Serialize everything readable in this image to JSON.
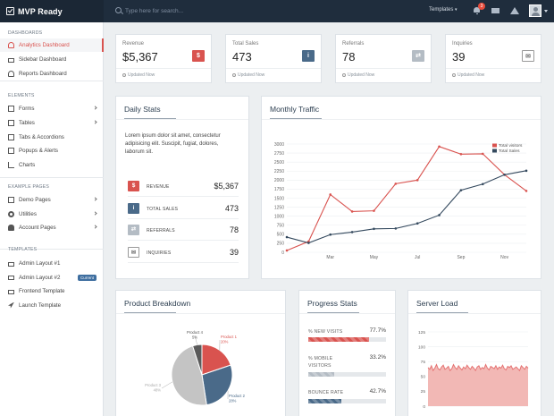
{
  "app": {
    "brand": "MVP Ready"
  },
  "topbar": {
    "search_placeholder": "Type here for search...",
    "templates_label": "Templates",
    "notif_count": "3",
    "icons": [
      "search-icon",
      "bell-icon",
      "mail-icon",
      "warning-icon"
    ]
  },
  "sidebar": {
    "dashboards_title": "DASHBOARDS",
    "dashboards": [
      {
        "label": "Analytics Dashboard",
        "icon": "dashboard-icon",
        "active": true
      },
      {
        "label": "Sidebar Dashboard",
        "icon": "laptop-icon"
      },
      {
        "label": "Reports Dashboard",
        "icon": "dashboard-icon"
      }
    ],
    "elements_title": "ELEMENTS",
    "elements": [
      {
        "label": "Forms",
        "icon": "pencil-icon"
      },
      {
        "label": "Tables",
        "icon": "table-icon"
      },
      {
        "label": "Tabs & Accordions",
        "icon": "tabs-icon"
      },
      {
        "label": "Popups & Alerts",
        "icon": "popup-icon"
      },
      {
        "label": "Charts",
        "icon": "chart-icon"
      }
    ],
    "examples_title": "EXAMPLE PAGES",
    "examples": [
      {
        "label": "Demo Pages",
        "icon": "folder-icon"
      },
      {
        "label": "Utilities",
        "icon": "cog-icon"
      },
      {
        "label": "Account Pages",
        "icon": "user-icon"
      }
    ],
    "templates_title": "TEMPLATES",
    "templates": [
      {
        "label": "Admin Layout #1",
        "icon": "laptop-icon"
      },
      {
        "label": "Admin Layout #2",
        "icon": "laptop-icon",
        "pill": "Current"
      },
      {
        "label": "Frontend Template",
        "icon": "desktop-icon"
      },
      {
        "label": "Launch Template",
        "icon": "rocket-icon"
      }
    ]
  },
  "stats": [
    {
      "label": "Revenue",
      "value": "$5,367",
      "icon": "dollar-icon",
      "color": "#d9534f",
      "glyph": "$",
      "foot": "Updated Now"
    },
    {
      "label": "Total Sales",
      "value": "473",
      "icon": "info-icon",
      "color": "#4a6a89",
      "glyph": "i",
      "foot": "Updated Now"
    },
    {
      "label": "Referrals",
      "value": "78",
      "icon": "exchange-icon",
      "color": "#b4bcc4",
      "glyph": "⇄",
      "foot": "Updated Now"
    },
    {
      "label": "Inquiries",
      "value": "39",
      "icon": "envelope-icon",
      "color": "#ffffff",
      "glyph": "✉",
      "foot": "Updated Now"
    }
  ],
  "daily": {
    "title": "Daily Stats",
    "text": "Lorem ipsum dolor sit amet, consectetur adipisicing elit. Suscipit, fugiat, dolores, laborum sit.",
    "rows": [
      {
        "label": "REVENUE",
        "value": "$5,367",
        "color": "#d9534f",
        "glyph": "$",
        "icon": "dollar-icon"
      },
      {
        "label": "TOTAL SALES",
        "value": "473",
        "color": "#4a6a89",
        "glyph": "i",
        "icon": "info-icon"
      },
      {
        "label": "REFERRALS",
        "value": "78",
        "color": "#b4bcc4",
        "glyph": "⇄",
        "icon": "exchange-icon"
      },
      {
        "label": "INQUIRIES",
        "value": "39",
        "color": "#ffffff",
        "glyph": "✉",
        "icon": "envelope-icon"
      }
    ]
  },
  "panels": {
    "traffic": "Monthly Traffic",
    "product": "Product Breakdown",
    "progress": "Progress Stats",
    "server": "Server Load"
  },
  "progress": [
    {
      "label": "% NEW VISITS",
      "pct": "77.7%",
      "value": 77.7,
      "color": "#d9534f"
    },
    {
      "label": "% MOBILE VISITORS",
      "pct": "33.2%",
      "value": 33.2,
      "color": "#b4bcc4"
    },
    {
      "label": "BOUNCE RATE",
      "pct": "42.7%",
      "value": 42.7,
      "color": "#4a6a89"
    }
  ],
  "chart_data": [
    {
      "type": "line",
      "x": [
        1,
        2,
        3,
        4,
        5,
        6,
        7,
        8,
        9,
        10,
        11,
        12
      ],
      "tick_labels": {
        "3": "Mar",
        "5": "May",
        "7": "Jul",
        "9": "Sep",
        "11": "Nov"
      },
      "ylim": [
        0,
        3000
      ],
      "yticks": [
        0,
        250,
        500,
        750,
        1000,
        1250,
        1500,
        1750,
        2000,
        2250,
        2500,
        2750,
        3000
      ],
      "series": [
        {
          "name": "Total visitors",
          "color": "#d9534f",
          "values": [
            50,
            300,
            1600,
            1130,
            1150,
            1900,
            2000,
            2930,
            2720,
            2730,
            2150,
            1700
          ]
        },
        {
          "name": "Total Sales",
          "color": "#34495e",
          "values": [
            420,
            260,
            490,
            560,
            650,
            660,
            800,
            1030,
            1720,
            1890,
            2150,
            2260
          ]
        }
      ],
      "legend": "top-right",
      "grid": true
    },
    {
      "type": "pie",
      "labels": [
        "Product 1",
        "Product 2",
        "Product 3",
        "Product 4"
      ],
      "values": [
        20,
        28,
        48,
        5
      ],
      "value_labels": [
        "20%",
        "28%",
        "48%",
        "5%"
      ],
      "colors": [
        "#d9534f",
        "#4a6a89",
        "#c4c4c4",
        "#5a5a5a"
      ]
    },
    {
      "type": "area",
      "ylim": [
        0,
        125
      ],
      "yticks": [
        0,
        25,
        50,
        75,
        100,
        125
      ],
      "color": "#e57373",
      "values": [
        65,
        62,
        68,
        60,
        64,
        70,
        63,
        61,
        66,
        69,
        62,
        64,
        67,
        60,
        63,
        70,
        65,
        62,
        68,
        64,
        61,
        66,
        63,
        69,
        65,
        62,
        67,
        64,
        60,
        66,
        68,
        62,
        65,
        63,
        70,
        64,
        61,
        67,
        65,
        63,
        68,
        62,
        66,
        64,
        69,
        63,
        61,
        67,
        65,
        68,
        62,
        64,
        66,
        63,
        60,
        68,
        65,
        62,
        67,
        64
      ]
    }
  ]
}
